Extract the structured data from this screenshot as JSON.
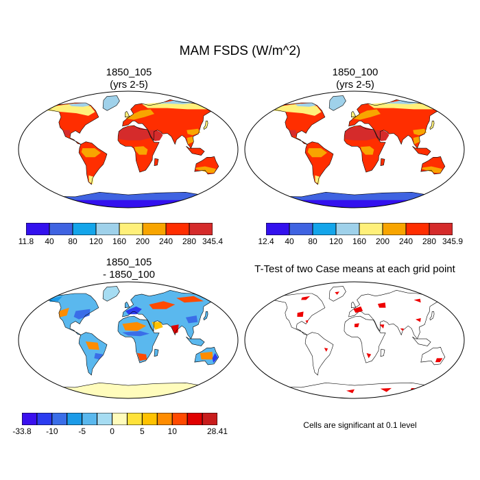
{
  "figure": {
    "title": "MAM FSDS (W/m^2)"
  },
  "panels": {
    "case1": {
      "title_line1": "1850_105",
      "title_line2": "(yrs 2-5)"
    },
    "case2": {
      "title_line1": "1850_100",
      "title_line2": "(yrs 2-5)"
    },
    "diff": {
      "title_line1": "1850_105",
      "title_line2": "- 1850_100"
    },
    "ttest": {
      "title": "T-Test of two Case means at each grid point",
      "note": "Cells are significant at 0.1 level"
    }
  },
  "colorbars": {
    "case1": {
      "colors": [
        "#3311ee",
        "#3f63e1",
        "#14a5ea",
        "#9fd1ea",
        "#fff07a",
        "#f8a500",
        "#ff2e00",
        "#d52b2b"
      ],
      "labels": [
        "11.8",
        "40",
        "80",
        "120",
        "160",
        "200",
        "240",
        "280",
        "345.4"
      ]
    },
    "case2": {
      "colors": [
        "#3311ee",
        "#3f63e1",
        "#14a5ea",
        "#9fd1ea",
        "#fff07a",
        "#f8a500",
        "#ff2e00",
        "#d52b2b"
      ],
      "labels": [
        "12.4",
        "40",
        "80",
        "120",
        "160",
        "200",
        "240",
        "280",
        "345.9"
      ]
    },
    "diff": {
      "colors": [
        "#3a10ee",
        "#2b3cf0",
        "#3a6ee8",
        "#1c9be8",
        "#5ab8ee",
        "#a6dcf2",
        "#fffcbc",
        "#ffe23a",
        "#ffc200",
        "#ff8c00",
        "#ff4a00",
        "#e00000",
        "#c81c1c"
      ],
      "labels": [
        "-33.8",
        "-10",
        "-5",
        "0",
        "5",
        "10",
        "28.41"
      ],
      "label_positions": [
        0,
        2,
        4,
        6,
        8,
        10,
        13
      ]
    }
  },
  "legend_colors": {
    "significant": "#ee0000",
    "coastline": "#000000"
  }
}
